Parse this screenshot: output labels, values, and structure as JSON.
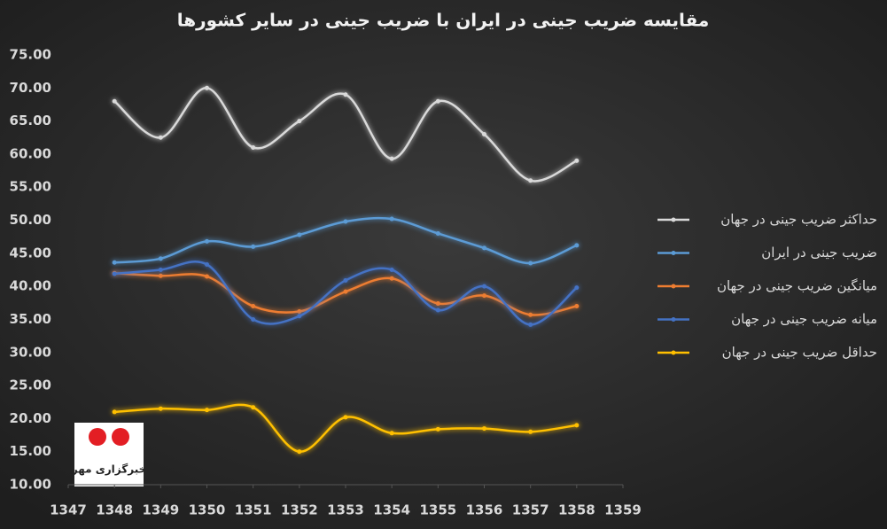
{
  "chart_data": {
    "type": "line",
    "title": "مقایسه ضریب جینی در ایران با ضریب جینی در سایر کشورها",
    "x": [
      1348,
      1349,
      1350,
      1351,
      1352,
      1353,
      1354,
      1355,
      1356,
      1357,
      1358
    ],
    "series": [
      {
        "name": "حداکثر ضریب جینی در جهان",
        "color": "#d9d9d9",
        "values": [
          68,
          62.5,
          70,
          61,
          65,
          69,
          59.3,
          68,
          63,
          56,
          59
        ]
      },
      {
        "name": "ضریب جینی در ایران",
        "color": "#5b9bd5",
        "values": [
          43.6,
          44.2,
          46.8,
          46,
          47.8,
          49.8,
          50.2,
          48,
          45.8,
          43.5,
          46.2
        ]
      },
      {
        "name": "میانگین ضریب جینی در جهان",
        "color": "#ed7d31",
        "values": [
          42,
          41.6,
          41.5,
          37,
          36.2,
          39.2,
          41.2,
          37.4,
          38.6,
          35.7,
          37
        ]
      },
      {
        "name": "میانه ضریب جینی در جهان",
        "color": "#4472c4",
        "values": [
          41.9,
          42.5,
          43.3,
          35,
          35.5,
          40.9,
          42.5,
          36.4,
          40,
          34.2,
          39.8
        ]
      },
      {
        "name": "حداقل ضریب جینی در جهان",
        "color": "#ffc000",
        "values": [
          21,
          21.5,
          21.3,
          21.7,
          15,
          20.2,
          17.8,
          18.4,
          18.5,
          18,
          19
        ]
      }
    ],
    "xlim": [
      1347,
      1359
    ],
    "xticks": [
      1347,
      1348,
      1349,
      1350,
      1351,
      1352,
      1353,
      1354,
      1355,
      1356,
      1357,
      1358,
      1359
    ],
    "ylim": [
      10,
      75
    ],
    "yticks": [
      {
        "value": 10,
        "label": "10.00"
      },
      {
        "value": 15,
        "label": "15.00"
      },
      {
        "value": 20,
        "label": "20.00"
      },
      {
        "value": 25,
        "label": "25.00"
      },
      {
        "value": 30,
        "label": "30.00"
      },
      {
        "value": 35,
        "label": "35.00"
      },
      {
        "value": 40,
        "label": "40.00"
      },
      {
        "value": 45,
        "label": "45.00"
      },
      {
        "value": 50,
        "label": "50.00"
      },
      {
        "value": 55,
        "label": "55.00"
      },
      {
        "value": 60,
        "label": "60.00"
      },
      {
        "value": 65,
        "label": "65.00"
      },
      {
        "value": 70,
        "label": "70.00"
      },
      {
        "value": 75,
        "label": "75.00"
      }
    ],
    "grid": false,
    "legend": "right",
    "watermark": "خبرگزاری مهر"
  }
}
